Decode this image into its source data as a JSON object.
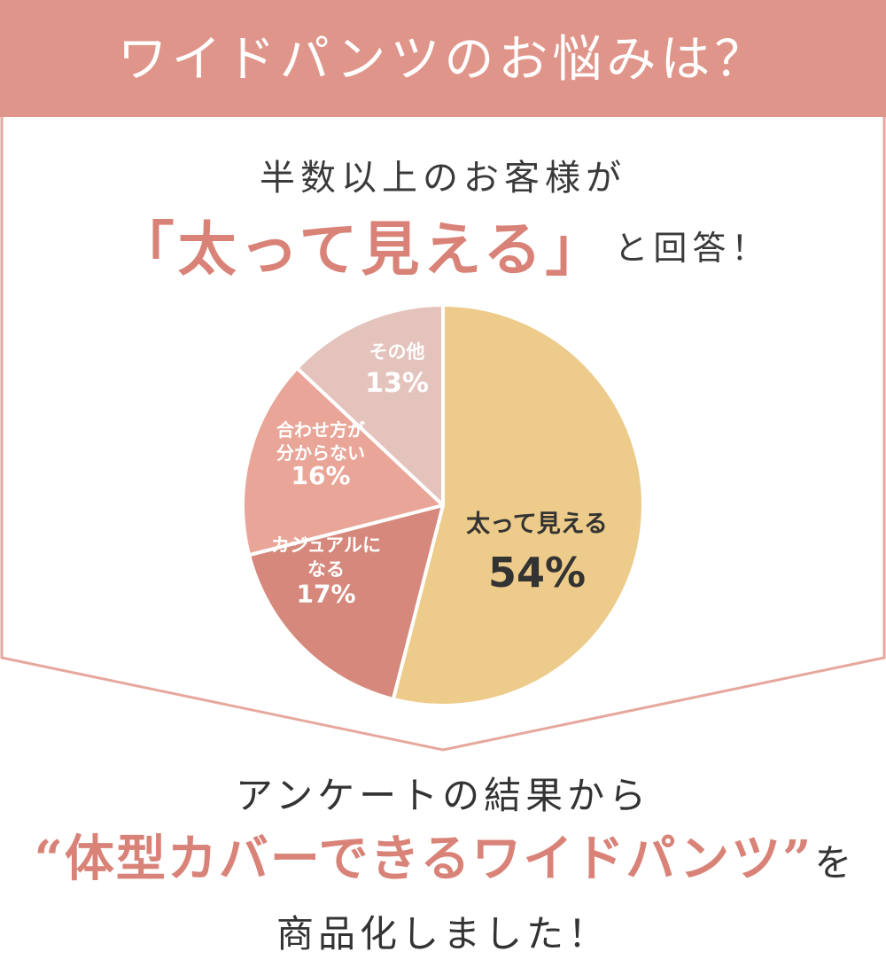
{
  "header": {
    "title": "ワイドパンツのお悩みは？"
  },
  "intro": {
    "line1": "半数以上のお客様が",
    "emphasis": "「太って見える」",
    "tail": "と回答！"
  },
  "chart_data": {
    "type": "pie",
    "title": "",
    "slices": [
      {
        "label_lines": [
          "太って見える"
        ],
        "value": 54,
        "value_label": "54%",
        "color": "#edcb8a",
        "text_color": "#333333"
      },
      {
        "label_lines": [
          "カジュアルに",
          "なる"
        ],
        "value": 17,
        "value_label": "17%",
        "color": "#d5887b",
        "text_color": "#ffffff"
      },
      {
        "label_lines": [
          "合わせ方が",
          "分からない"
        ],
        "value": 16,
        "value_label": "16%",
        "color": "#e9a698",
        "text_color": "#ffffff"
      },
      {
        "label_lines": [
          "その他"
        ],
        "value": 13,
        "value_label": "13%",
        "color": "#e4c3bd",
        "text_color": "#ffffff"
      }
    ],
    "start_angle_deg": 0,
    "direction": "clockwise",
    "legend": "none"
  },
  "outro": {
    "line1": "アンケートの結果から",
    "accent": "“体型カバーできるワイドパンツ”",
    "tail": "を",
    "line3": "商品化しました！"
  },
  "colors": {
    "band": "#e0958a",
    "frame": "#e6a89d",
    "accent_text": "#d98378"
  }
}
